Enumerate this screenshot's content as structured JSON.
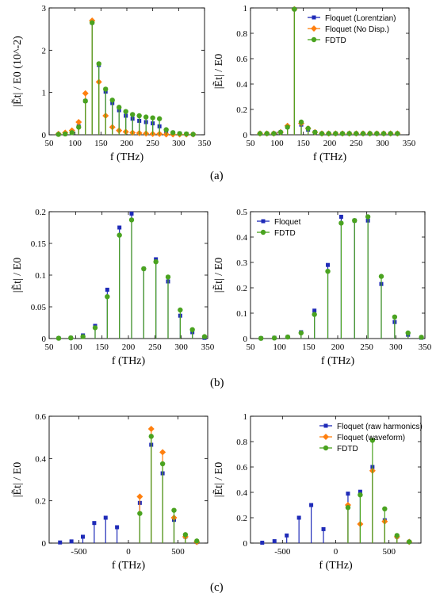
{
  "colors": {
    "Floquet": "#1f2bb8",
    "NoDisp": "#ff7f0e",
    "FDTD": "#4aa320"
  },
  "captions": [
    "(a)",
    "(b)",
    "(c)"
  ],
  "chart_data": [
    {
      "type": "scatter",
      "subplot": "a-left",
      "xlabel": "f (THz)",
      "ylabel": "|Ẽt| / E0 (10^-2)",
      "xlim": [
        50,
        350
      ],
      "ylim": [
        0,
        3
      ],
      "xticks": [
        50,
        100,
        150,
        200,
        250,
        300,
        350
      ],
      "yticks": [
        0,
        1,
        2,
        3
      ],
      "legend": null,
      "series": [
        {
          "key": "Floquet",
          "marker": "square",
          "x": [
            68,
            81,
            94,
            107,
            120,
            133,
            146,
            159,
            172,
            185,
            198,
            211,
            224,
            237,
            250,
            263,
            276,
            289,
            302,
            315,
            328
          ],
          "values": [
            0.01,
            0.02,
            0.05,
            0.2,
            0.8,
            2.65,
            1.65,
            1.02,
            0.75,
            0.58,
            0.45,
            0.38,
            0.33,
            0.3,
            0.27,
            0.2,
            0.08,
            0.05,
            0.03,
            0.02,
            0.01
          ]
        },
        {
          "key": "NoDisp",
          "marker": "diamond",
          "x": [
            68,
            81,
            94,
            107,
            120,
            133,
            146,
            159,
            172,
            185,
            198,
            211,
            224,
            237,
            250,
            263,
            276,
            289,
            302,
            315,
            328
          ],
          "values": [
            0.02,
            0.05,
            0.1,
            0.3,
            0.98,
            2.7,
            1.25,
            0.45,
            0.18,
            0.1,
            0.07,
            0.05,
            0.04,
            0.03,
            0.02,
            0.02,
            0.01,
            0.01,
            0.01,
            0.01,
            0.01
          ]
        },
        {
          "key": "FDTD",
          "marker": "circle",
          "x": [
            68,
            81,
            94,
            107,
            120,
            133,
            146,
            159,
            172,
            185,
            198,
            211,
            224,
            237,
            250,
            263,
            276,
            289,
            302,
            315,
            328
          ],
          "values": [
            0.01,
            0.02,
            0.05,
            0.18,
            0.8,
            2.65,
            1.68,
            1.08,
            0.82,
            0.65,
            0.55,
            0.48,
            0.45,
            0.42,
            0.4,
            0.38,
            0.12,
            0.05,
            0.03,
            0.02,
            0.01
          ]
        }
      ]
    },
    {
      "type": "scatter",
      "subplot": "a-right",
      "xlabel": "f (THz)",
      "ylabel": "|Ẽt| / E0",
      "xlim": [
        50,
        350
      ],
      "ylim": [
        0,
        1
      ],
      "xticks": [
        50,
        100,
        150,
        200,
        250,
        300,
        350
      ],
      "yticks": [
        0,
        0.2,
        0.4,
        0.6,
        0.8,
        1
      ],
      "legend": {
        "placement": "top-right",
        "entries": [
          {
            "key": "Floquet",
            "label": "Floquet (Lorentzian)"
          },
          {
            "key": "NoDisp",
            "label": "Floquet (No Disp.)"
          },
          {
            "key": "FDTD",
            "label": "FDTD"
          }
        ]
      },
      "series": [
        {
          "key": "Floquet",
          "marker": "square",
          "x": [
            68,
            81,
            94,
            107,
            120,
            133,
            146,
            159,
            172,
            185,
            198,
            211,
            224,
            237,
            250,
            263,
            276,
            289,
            302,
            315,
            328
          ],
          "values": [
            0.01,
            0.01,
            0.01,
            0.02,
            0.06,
            0.99,
            0.08,
            0.04,
            0.02,
            0.01,
            0.01,
            0.01,
            0.01,
            0.01,
            0.01,
            0.01,
            0.01,
            0.01,
            0.01,
            0.01,
            0.01
          ]
        },
        {
          "key": "NoDisp",
          "marker": "diamond",
          "x": [
            68,
            81,
            94,
            107,
            120,
            133,
            146,
            159,
            172,
            185,
            198,
            211,
            224,
            237,
            250,
            263,
            276,
            289,
            302,
            315,
            328
          ],
          "values": [
            0.01,
            0.01,
            0.01,
            0.02,
            0.07,
            0.99,
            0.09,
            0.05,
            0.02,
            0.01,
            0.01,
            0.01,
            0.01,
            0.01,
            0.01,
            0.01,
            0.01,
            0.01,
            0.01,
            0.01,
            0.01
          ]
        },
        {
          "key": "FDTD",
          "marker": "circle",
          "x": [
            68,
            81,
            94,
            107,
            120,
            133,
            146,
            159,
            172,
            185,
            198,
            211,
            224,
            237,
            250,
            263,
            276,
            289,
            302,
            315,
            328
          ],
          "values": [
            0.01,
            0.01,
            0.01,
            0.02,
            0.06,
            0.99,
            0.1,
            0.05,
            0.02,
            0.01,
            0.01,
            0.01,
            0.01,
            0.01,
            0.01,
            0.01,
            0.01,
            0.01,
            0.01,
            0.01,
            0.01
          ]
        }
      ]
    },
    {
      "type": "scatter",
      "subplot": "b-left",
      "xlabel": "f (THz)",
      "ylabel": "|Ẽt| / E0",
      "xlim": [
        50,
        350
      ],
      "ylim": [
        0,
        0.2
      ],
      "xticks": [
        50,
        100,
        150,
        200,
        250,
        300,
        350
      ],
      "yticks": [
        0,
        0.05,
        0.1,
        0.15,
        0.2
      ],
      "legend": null,
      "series": [
        {
          "key": "Floquet",
          "marker": "square",
          "x": [
            68,
            91,
            114,
            137,
            160,
            183,
            206,
            229,
            252,
            275,
            298,
            321,
            344
          ],
          "values": [
            0.0005,
            0.001,
            0.005,
            0.02,
            0.077,
            0.175,
            0.197,
            0.11,
            0.125,
            0.09,
            0.036,
            0.01,
            0.001
          ]
        },
        {
          "key": "FDTD",
          "marker": "circle",
          "x": [
            68,
            91,
            114,
            137,
            160,
            183,
            206,
            229,
            252,
            275,
            298,
            321,
            344
          ],
          "values": [
            0.0005,
            0.001,
            0.003,
            0.017,
            0.066,
            0.163,
            0.187,
            0.11,
            0.121,
            0.097,
            0.045,
            0.014,
            0.003
          ]
        }
      ]
    },
    {
      "type": "scatter",
      "subplot": "b-right",
      "xlabel": "f (THz)",
      "ylabel": "|Ẽt| / E0",
      "xlim": [
        50,
        350
      ],
      "ylim": [
        0,
        0.5
      ],
      "xticks": [
        50,
        100,
        150,
        200,
        250,
        300,
        350
      ],
      "yticks": [
        0,
        0.1,
        0.2,
        0.3,
        0.4,
        0.5
      ],
      "legend": {
        "placement": "top-left",
        "entries": [
          {
            "key": "Floquet",
            "label": "Floquet"
          },
          {
            "key": "FDTD",
            "label": "FDTD"
          }
        ]
      },
      "series": [
        {
          "key": "Floquet",
          "marker": "square",
          "x": [
            68,
            91,
            114,
            137,
            160,
            183,
            206,
            229,
            252,
            275,
            298,
            321,
            344
          ],
          "values": [
            0.001,
            0.003,
            0.006,
            0.025,
            0.11,
            0.29,
            0.48,
            0.465,
            0.465,
            0.215,
            0.065,
            0.015,
            0.003
          ]
        },
        {
          "key": "FDTD",
          "marker": "circle",
          "x": [
            68,
            91,
            114,
            137,
            160,
            183,
            206,
            229,
            252,
            275,
            298,
            321,
            344
          ],
          "values": [
            0.001,
            0.002,
            0.006,
            0.022,
            0.095,
            0.265,
            0.455,
            0.465,
            0.48,
            0.245,
            0.085,
            0.022,
            0.005
          ]
        }
      ]
    },
    {
      "type": "scatter",
      "subplot": "c-left",
      "xlabel": "f (THz)",
      "ylabel": "|Ẽt| / E0",
      "xlim": [
        -800,
        800
      ],
      "ylim": [
        0,
        0.6
      ],
      "xticks": [
        -500,
        0,
        500
      ],
      "yticks": [
        0,
        0.2,
        0.4,
        0.6
      ],
      "legend": null,
      "series": [
        {
          "key": "Floquet",
          "marker": "square",
          "x": [
            -690,
            -575,
            -460,
            -345,
            -230,
            -115,
            115,
            230,
            345,
            460,
            575,
            690
          ],
          "values": [
            0.003,
            0.008,
            0.03,
            0.095,
            0.12,
            0.075,
            0.19,
            0.465,
            0.33,
            0.11,
            0.03,
            0.005
          ]
        },
        {
          "key": "NoDisp",
          "marker": "diamond",
          "x": [
            115,
            230,
            345,
            460,
            575,
            690
          ],
          "values": [
            0.22,
            0.54,
            0.43,
            0.12,
            0.03,
            0.005
          ]
        },
        {
          "key": "FDTD",
          "marker": "circle",
          "x": [
            115,
            230,
            345,
            460,
            575,
            690
          ],
          "values": [
            0.14,
            0.505,
            0.375,
            0.155,
            0.04,
            0.01
          ]
        }
      ]
    },
    {
      "type": "scatter",
      "subplot": "c-right",
      "xlabel": "f (THz)",
      "ylabel": "|Ẽt| / E0",
      "xlim": [
        -800,
        800
      ],
      "ylim": [
        0,
        1
      ],
      "xticks": [
        -500,
        0,
        500
      ],
      "yticks": [
        0,
        0.2,
        0.4,
        0.6,
        0.8,
        1
      ],
      "legend": {
        "placement": "top-right",
        "entries": [
          {
            "key": "Floquet",
            "label": "Floquet (raw harmonics)"
          },
          {
            "key": "NoDisp",
            "label": "Floquet (waveform)"
          },
          {
            "key": "FDTD",
            "label": "FDTD"
          }
        ]
      },
      "series": [
        {
          "key": "Floquet",
          "marker": "square",
          "x": [
            -690,
            -575,
            -460,
            -345,
            -230,
            -115,
            115,
            230,
            345,
            460,
            575,
            690
          ],
          "values": [
            0.003,
            0.015,
            0.06,
            0.2,
            0.3,
            0.11,
            0.39,
            0.405,
            0.6,
            0.18,
            0.05,
            0.01
          ]
        },
        {
          "key": "NoDisp",
          "marker": "diamond",
          "x": [
            115,
            230,
            345,
            460,
            575,
            690
          ],
          "values": [
            0.3,
            0.15,
            0.57,
            0.17,
            0.05,
            0.01
          ]
        },
        {
          "key": "FDTD",
          "marker": "circle",
          "x": [
            115,
            230,
            345,
            460,
            575,
            690
          ],
          "values": [
            0.28,
            0.38,
            0.81,
            0.27,
            0.06,
            0.01
          ]
        }
      ]
    }
  ]
}
